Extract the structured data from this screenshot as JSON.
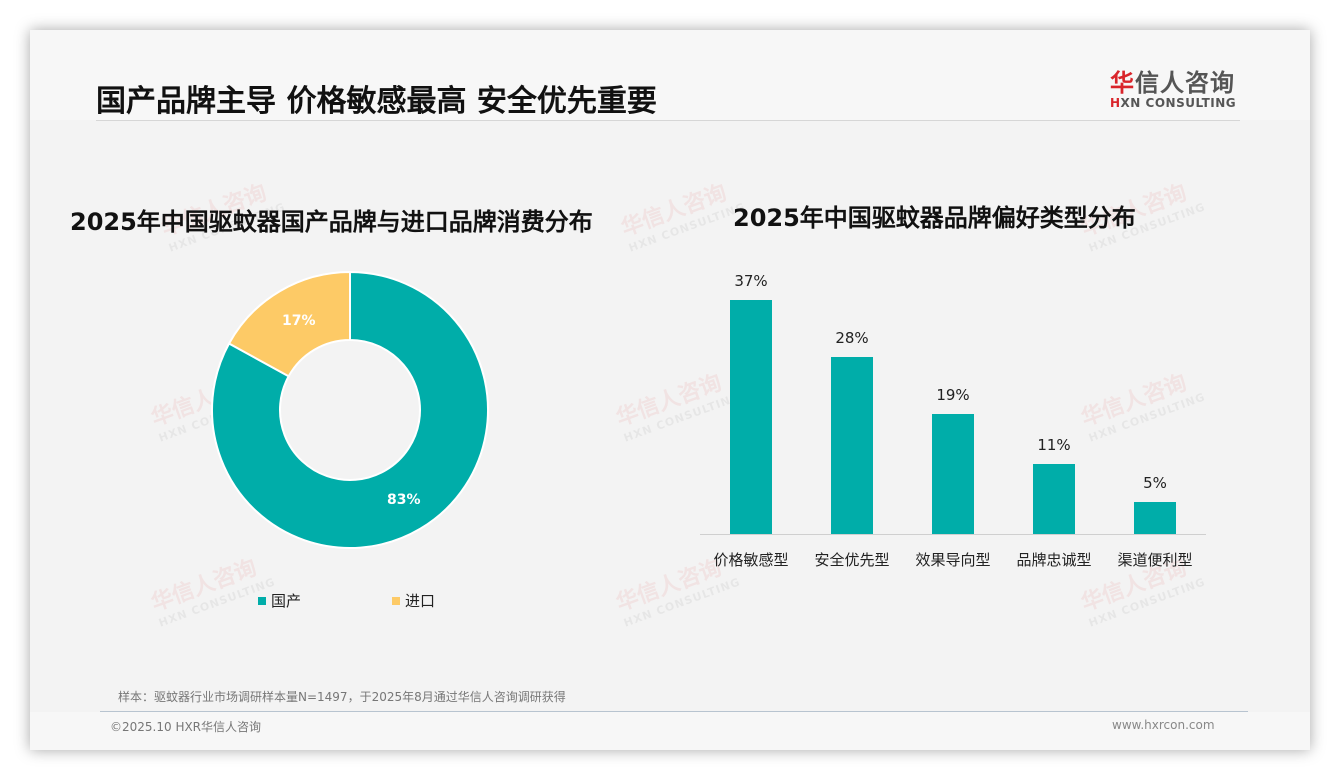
{
  "header": {
    "title": "国产品牌主导 价格敏感最高 安全优先重要",
    "logo_cn_first": "华",
    "logo_cn_rest": "信人咨询",
    "logo_en_first": "H",
    "logo_en_rest": "XN CONSULTING"
  },
  "watermark": {
    "cn": "华信人咨询",
    "en": "HXN CONSULTING"
  },
  "colors": {
    "teal": "#00ada9",
    "yellow": "#fdca66",
    "brand_red": "#d9252b"
  },
  "chart_data": [
    {
      "type": "pie",
      "variant": "donut",
      "title": "2025年中国驱蚊器国产品牌与进口品牌消费分布",
      "categories": [
        "国产",
        "进口"
      ],
      "values": [
        83,
        17
      ],
      "labels": [
        "83%",
        "17%"
      ],
      "colors": [
        "#00ada9",
        "#fdca66"
      ],
      "legend_position": "bottom"
    },
    {
      "type": "bar",
      "title": "2025年中国驱蚊器品牌偏好类型分布",
      "categories": [
        "价格敏感型",
        "安全优先型",
        "效果导向型",
        "品牌忠诚型",
        "渠道便利型"
      ],
      "values": [
        37,
        28,
        19,
        11,
        5
      ],
      "labels": [
        "37%",
        "28%",
        "19%",
        "11%",
        "5%"
      ],
      "unit": "%",
      "xlabel": "",
      "ylabel": "",
      "grid": false,
      "color": "#00ada9"
    }
  ],
  "footer": {
    "note": "样本：驱蚊器行业市场调研样本量N=1497，于2025年8月通过华信人咨询调研获得",
    "copyright": "©2025.10 HXR华信人咨询",
    "website": "www.hxrcon.com"
  }
}
